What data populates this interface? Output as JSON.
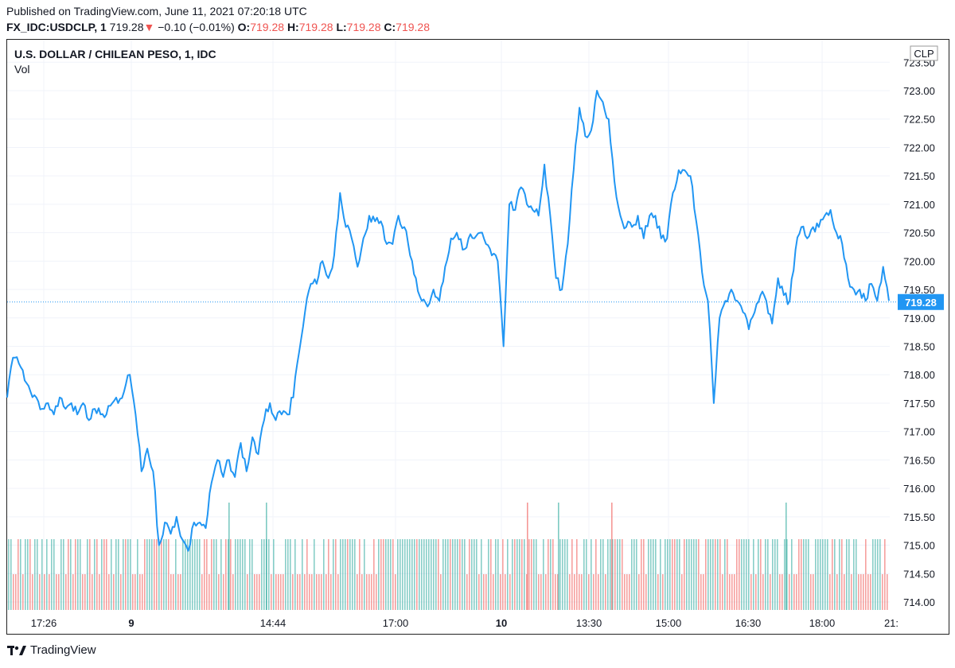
{
  "header": {
    "published": "Published on TradingView.com, June 11, 2021 07:20:18 UTC",
    "symbol_line": "FX_IDC:USDCLP, 1",
    "last": "719.28",
    "arrow": "▼",
    "change": "−0.10 (−0.01%)",
    "o_label": "O:",
    "o_val": "719.28",
    "h_label": "H:",
    "h_val": "719.28",
    "l_label": "L:",
    "l_val": "719.28",
    "c_label": "C:",
    "c_val": "719.28"
  },
  "title": "U.S. DOLLAR / CHILEAN PESO, 1, IDC",
  "vol_label": "Vol",
  "footer": {
    "brand": "TradingView"
  },
  "colors": {
    "line": "#2196f3",
    "up": "#26a69a",
    "down": "#ef5350",
    "grid": "#f0f3fa"
  },
  "chart_data": {
    "type": "line",
    "currency": "CLP",
    "last_price_label": "719.28",
    "ylim": [
      713.9,
      723.65
    ],
    "y_ticks": [
      "714.00",
      "714.50",
      "715.00",
      "715.50",
      "716.00",
      "716.50",
      "717.00",
      "717.50",
      "718.00",
      "718.50",
      "719.00",
      "719.50",
      "720.00",
      "720.50",
      "721.00",
      "721.50",
      "722.00",
      "722.50",
      "723.00",
      "723.50"
    ],
    "x_ticks": [
      "17:26",
      "9",
      "14:44",
      "17:00",
      "10",
      "13:30",
      "15:00",
      "16:30",
      "18:00",
      "21:"
    ],
    "series": [
      {
        "values": [
          717.6,
          718.3,
          718.2,
          717.9,
          717.7,
          717.6,
          717.4,
          717.5,
          717.3,
          717.6,
          717.4,
          717.5,
          717.3,
          717.5,
          717.2,
          717.4,
          717.3,
          717.3,
          717.5,
          717.5,
          717.7,
          718.0,
          717.3,
          716.3,
          716.7,
          716.3,
          715.0,
          715.4,
          715.2,
          715.5,
          715.1,
          714.9,
          715.4,
          715.4,
          715.3,
          716.1,
          716.5,
          716.2,
          716.5,
          716.2,
          716.8,
          716.3,
          716.9,
          716.6,
          717.2,
          717.5,
          717.2,
          717.3,
          717.3,
          717.6,
          718.4,
          719.1,
          719.6,
          719.6,
          720.0,
          719.7,
          720.1,
          721.2,
          720.6,
          720.4,
          719.9,
          720.4,
          720.8,
          720.7,
          720.7,
          720.3,
          720.3,
          720.8,
          720.6,
          720.1,
          719.7,
          719.3,
          719.2,
          719.5,
          719.3,
          719.9,
          720.4,
          720.5,
          720.2,
          720.4,
          720.4,
          720.5,
          720.3,
          720.1,
          720.0,
          718.5,
          721.0,
          720.9,
          721.3,
          721.0,
          720.9,
          720.8,
          721.7,
          720.8,
          719.7,
          719.5,
          720.3,
          721.6,
          722.7,
          722.2,
          722.3,
          723.0,
          722.8,
          722.5,
          721.4,
          720.8,
          720.6,
          720.6,
          720.8,
          720.4,
          720.8,
          720.8,
          720.4,
          720.4,
          721.2,
          721.6,
          721.6,
          721.5,
          720.7,
          719.8,
          719.3,
          717.5,
          719.0,
          719.3,
          719.5,
          719.3,
          719.1,
          718.8,
          719.1,
          719.4,
          719.3,
          718.9,
          719.7,
          719.4,
          719.3,
          720.2,
          720.6,
          720.4,
          720.6,
          720.6,
          720.8,
          720.9,
          720.5,
          720.3,
          719.7,
          719.5,
          719.5,
          719.3,
          719.6,
          719.3,
          719.9,
          719.3
        ]
      }
    ],
    "volume": {
      "base_bar_label": "bars reach ~715.1",
      "spikes": [
        "near 9/14:44 session (green)",
        "near 10/13:30 session (red & green)",
        "near 16:30-18:00 (green)"
      ]
    },
    "grid": true
  }
}
